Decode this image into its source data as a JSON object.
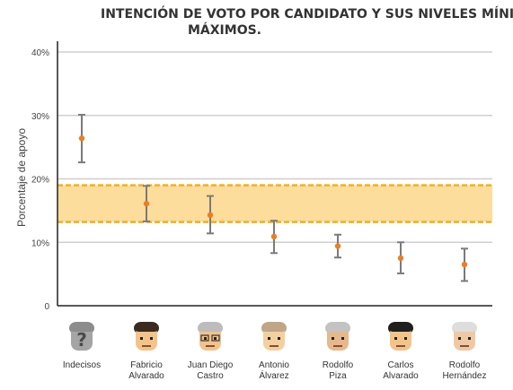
{
  "chart_data": {
    "type": "scatter",
    "title_lines": [
      "INTENCIÓN DE VOTO POR CANDIDATO Y SUS NIVELES MÍNIMOS Y",
      "MÁXIMOS."
    ],
    "ylabel": "Porcentaje de apoyo",
    "ylim": [
      0,
      40
    ],
    "yticks": [
      "0",
      "10%",
      "20%",
      "30%",
      "40%"
    ],
    "grid": true,
    "band": {
      "low": 13.2,
      "high": 19.0,
      "color": "#fbd27a"
    },
    "categories": [
      {
        "lines": [
          "Indecisos"
        ],
        "icon": "unknown-person-icon"
      },
      {
        "lines": [
          "Fabricio",
          "Alvarado"
        ],
        "icon": "fabricio-alvarado-icon"
      },
      {
        "lines": [
          "Juan Diego",
          "Castro"
        ],
        "icon": "juan-diego-castro-icon"
      },
      {
        "lines": [
          "Antonio",
          "Álvarez"
        ],
        "icon": "antonio-alvarez-icon"
      },
      {
        "lines": [
          "Rodolfo",
          "Piza"
        ],
        "icon": "rodolfo-piza-icon"
      },
      {
        "lines": [
          "Carlos",
          "Alvarado"
        ],
        "icon": "carlos-alvarado-icon"
      },
      {
        "lines": [
          "Rodolfo",
          "Hernández"
        ],
        "icon": "rodolfo-hernandez-icon"
      }
    ],
    "values": [
      26.4,
      16.1,
      14.3,
      10.9,
      9.4,
      7.5,
      6.5
    ],
    "min": [
      22.6,
      13.3,
      11.4,
      8.3,
      7.6,
      5.1,
      3.9
    ],
    "max": [
      30.1,
      18.9,
      17.3,
      13.4,
      11.2,
      10.0,
      9.0
    ],
    "colors": {
      "point": "#f07d1e",
      "errorbar": "#7a7a7a",
      "band_edge": "#f3b01c",
      "grid": "#cfcfcf"
    }
  }
}
